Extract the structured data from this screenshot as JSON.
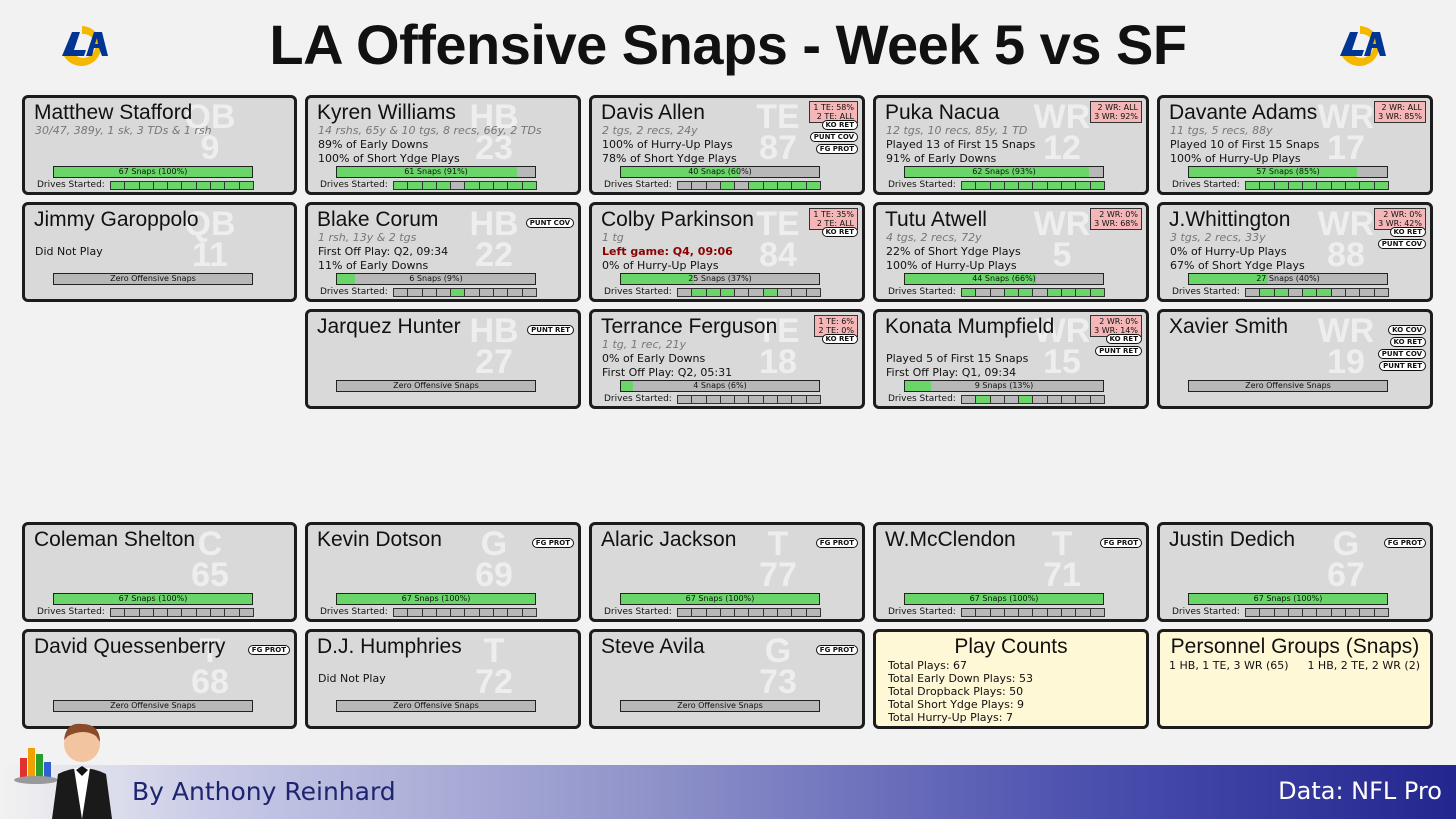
{
  "title": "LA Offensive Snaps - Week 5 vs SF",
  "footer": {
    "byline": "By Anthony Reinhard",
    "source": "Data: NFL Pro"
  },
  "icons": {
    "logo": "rams-logo-icon",
    "author": "waiter-icon"
  },
  "colors": {
    "snap_fill": "#6ad66a",
    "card_bg": "#d9d9d9",
    "pct_box": "#f4b6b6",
    "summary_bg": "#fff8d6",
    "left_game": "#8b0000"
  },
  "players": [
    {
      "name": "Matthew Stafford",
      "pos": "QB",
      "num": "9",
      "line1": "30/47, 389y, 1 sk, 3 TDs & 1 rsh",
      "notes": [],
      "snaps": "67 Snaps (100%)",
      "snap_pct": 100,
      "drives": [
        1,
        1,
        1,
        1,
        1,
        1,
        1,
        1,
        1,
        1
      ],
      "pct_lines": [],
      "tags": []
    },
    {
      "name": "Kyren Williams",
      "pos": "HB",
      "num": "23",
      "line1": "14 rshs, 65y & 10 tgs, 8 recs, 66y, 2 TDs",
      "notes": [
        "89% of Early Downs",
        "100% of Short Ydge Plays"
      ],
      "snaps": "61 Snaps (91%)",
      "snap_pct": 91,
      "drives": [
        1,
        1,
        1,
        1,
        0,
        1,
        1,
        1,
        1,
        1
      ],
      "pct_lines": [],
      "tags": []
    },
    {
      "name": "Davis Allen",
      "pos": "TE",
      "num": "87",
      "line1": "2 tgs, 2 recs, 24y",
      "notes": [
        "100% of Hurry-Up Plays",
        "78% of Short Ydge Plays"
      ],
      "snaps": "40 Snaps (60%)",
      "snap_pct": 60,
      "drives": [
        0,
        0,
        0,
        1,
        0,
        1,
        1,
        1,
        1,
        1
      ],
      "pct_lines": [
        "1 TE: 58%",
        "2 TE: ALL"
      ],
      "tags": [
        "KO RET",
        "PUNT COV",
        "FG PROT"
      ]
    },
    {
      "name": "Puka Nacua",
      "pos": "WR",
      "num": "12",
      "line1": "12 tgs, 10 recs, 85y, 1 TD",
      "notes": [
        "Played 13 of First 15 Snaps",
        "91% of Early Downs"
      ],
      "snaps": "62 Snaps (93%)",
      "snap_pct": 93,
      "drives": [
        1,
        1,
        1,
        1,
        1,
        1,
        1,
        1,
        1,
        1
      ],
      "pct_lines": [
        "2 WR: ALL",
        "3 WR: 92%"
      ],
      "tags": []
    },
    {
      "name": "Davante Adams",
      "pos": "WR",
      "num": "17",
      "line1": "11 tgs, 5 recs, 88y",
      "notes": [
        "Played 10 of First 15 Snaps",
        "100% of Hurry-Up Plays"
      ],
      "snaps": "57 Snaps (85%)",
      "snap_pct": 85,
      "drives": [
        1,
        1,
        1,
        1,
        1,
        1,
        1,
        1,
        1,
        1
      ],
      "pct_lines": [
        "2 WR: ALL",
        "3 WR: 85%"
      ],
      "tags": []
    },
    {
      "name": "Jimmy Garoppolo",
      "pos": "QB",
      "num": "11",
      "line1": "",
      "notes": [
        "Did Not Play"
      ],
      "snaps": "Zero Offensive Snaps",
      "snap_pct": 0,
      "drives": null,
      "pct_lines": [],
      "tags": []
    },
    {
      "name": "Blake Corum",
      "pos": "HB",
      "num": "22",
      "line1": "1 rsh, 13y & 2 tgs",
      "notes": [
        "First Off Play: Q2, 09:34",
        "11% of Early Downs"
      ],
      "snaps": "6 Snaps (9%)",
      "snap_pct": 9,
      "drives": [
        0,
        0,
        0,
        0,
        1,
        0,
        0,
        0,
        0,
        0
      ],
      "pct_lines": [],
      "tags": [
        "PUNT COV"
      ]
    },
    {
      "name": "Colby Parkinson",
      "pos": "TE",
      "num": "84",
      "line1": "1 tg",
      "left_game": "Left game: Q4, 09:06",
      "notes": [
        "0% of Hurry-Up Plays"
      ],
      "snaps": "25 Snaps (37%)",
      "snap_pct": 37,
      "drives": [
        0,
        1,
        1,
        1,
        0,
        0,
        1,
        0,
        0,
        0
      ],
      "pct_lines": [
        "1 TE: 35%",
        "2 TE: ALL"
      ],
      "tags": [
        "KO RET"
      ]
    },
    {
      "name": "Tutu Atwell",
      "pos": "WR",
      "num": "5",
      "line1": "4 tgs, 2 recs, 72y",
      "notes": [
        "22% of Short Ydge Plays",
        "100% of Hurry-Up Plays"
      ],
      "snaps": "44 Snaps (66%)",
      "snap_pct": 66,
      "drives": [
        1,
        0,
        0,
        1,
        1,
        0,
        1,
        1,
        1,
        1
      ],
      "pct_lines": [
        "2 WR: 0%",
        "3 WR: 68%"
      ],
      "tags": []
    },
    {
      "name": "J.Whittington",
      "pos": "WR",
      "num": "88",
      "line1": "3 tgs, 2 recs, 33y",
      "notes": [
        "0% of Hurry-Up Plays",
        "67% of Short Ydge Plays"
      ],
      "snaps": "27 Snaps (40%)",
      "snap_pct": 40,
      "drives": [
        0,
        1,
        1,
        0,
        1,
        1,
        0,
        0,
        0,
        0
      ],
      "pct_lines": [
        "2 WR: 0%",
        "3 WR: 42%"
      ],
      "tags": [
        "KO RET",
        "PUNT COV"
      ]
    },
    {
      "name": "Jarquez Hunter",
      "pos": "HB",
      "num": "27",
      "line1": "",
      "notes": [],
      "snaps": "Zero Offensive Snaps",
      "snap_pct": 0,
      "drives": null,
      "pct_lines": [],
      "tags": [
        "PUNT RET"
      ]
    },
    {
      "name": "Terrance Ferguson",
      "pos": "TE",
      "num": "18",
      "line1": "1 tg, 1 rec, 21y",
      "notes": [
        "0% of Early Downs",
        "First Off Play: Q2, 05:31"
      ],
      "snaps": "4 Snaps (6%)",
      "snap_pct": 6,
      "drives": [
        0,
        0,
        0,
        0,
        0,
        0,
        0,
        0,
        0,
        0
      ],
      "pct_lines": [
        "1 TE: 6%",
        "2 TE: 0%"
      ],
      "tags": [
        "KO RET"
      ]
    },
    {
      "name": "Konata Mumpfield",
      "pos": "WR",
      "num": "15",
      "line1": "",
      "notes": [
        "Played 5 of First 15 Snaps",
        "First Off Play: Q1, 09:34"
      ],
      "snaps": "9 Snaps (13%)",
      "snap_pct": 13,
      "drives": [
        0,
        1,
        0,
        0,
        1,
        0,
        0,
        0,
        0,
        0
      ],
      "pct_lines": [
        "2 WR: 0%",
        "3 WR: 14%"
      ],
      "tags": [
        "KO RET",
        "PUNT RET"
      ]
    },
    {
      "name": "Xavier Smith",
      "pos": "WR",
      "num": "19",
      "line1": "",
      "notes": [],
      "snaps": "Zero Offensive Snaps",
      "snap_pct": 0,
      "drives": null,
      "pct_lines": [],
      "tags": [
        "KO COV",
        "KO RET",
        "PUNT COV",
        "PUNT RET"
      ]
    },
    {
      "name": "Coleman Shelton",
      "pos": "C",
      "num": "65",
      "line1": "",
      "notes": [],
      "snaps": "67 Snaps (100%)",
      "snap_pct": 100,
      "drives": [
        0,
        0,
        0,
        0,
        0,
        0,
        0,
        0,
        0,
        0
      ],
      "pct_lines": [],
      "tags": []
    },
    {
      "name": "Kevin Dotson",
      "pos": "G",
      "num": "69",
      "line1": "",
      "notes": [],
      "snaps": "67 Snaps (100%)",
      "snap_pct": 100,
      "drives": [
        0,
        0,
        0,
        0,
        0,
        0,
        0,
        0,
        0,
        0
      ],
      "pct_lines": [],
      "tags": [
        "FG PROT"
      ]
    },
    {
      "name": "Alaric Jackson",
      "pos": "T",
      "num": "77",
      "line1": "",
      "notes": [],
      "snaps": "67 Snaps (100%)",
      "snap_pct": 100,
      "drives": [
        0,
        0,
        0,
        0,
        0,
        0,
        0,
        0,
        0,
        0
      ],
      "pct_lines": [],
      "tags": [
        "FG PROT"
      ]
    },
    {
      "name": "W.McClendon",
      "pos": "T",
      "num": "71",
      "line1": "",
      "notes": [],
      "snaps": "67 Snaps (100%)",
      "snap_pct": 100,
      "drives": [
        0,
        0,
        0,
        0,
        0,
        0,
        0,
        0,
        0,
        0
      ],
      "pct_lines": [],
      "tags": [
        "FG PROT"
      ]
    },
    {
      "name": "Justin Dedich",
      "pos": "G",
      "num": "67",
      "line1": "",
      "notes": [],
      "snaps": "67 Snaps (100%)",
      "snap_pct": 100,
      "drives": [
        0,
        0,
        0,
        0,
        0,
        0,
        0,
        0,
        0,
        0
      ],
      "pct_lines": [],
      "tags": [
        "FG PROT"
      ]
    },
    {
      "name": "David Quessenberry",
      "pos": "T",
      "num": "68",
      "line1": "",
      "notes": [],
      "snaps": "Zero Offensive Snaps",
      "snap_pct": 0,
      "drives": null,
      "pct_lines": [],
      "tags": [
        "FG PROT"
      ]
    },
    {
      "name": "D.J. Humphries",
      "pos": "T",
      "num": "72",
      "line1": "",
      "notes": [
        "Did Not Play"
      ],
      "snaps": "Zero Offensive Snaps",
      "snap_pct": 0,
      "drives": null,
      "pct_lines": [],
      "tags": []
    },
    {
      "name": "Steve Avila",
      "pos": "G",
      "num": "73",
      "line1": "",
      "notes": [],
      "snaps": "Zero Offensive Snaps",
      "snap_pct": 0,
      "drives": null,
      "pct_lines": [],
      "tags": [
        "FG PROT"
      ]
    }
  ],
  "drives_label": "Drives Started:",
  "play_counts": {
    "title": "Play Counts",
    "lines": [
      "Total Plays: 67",
      "Total Early Down Plays: 53",
      "Total Dropback Plays: 50",
      "Total Short Ydge Plays: 9",
      "Total Hurry-Up Plays: 7"
    ]
  },
  "personnel": {
    "title": "Personnel Groups (Snaps)",
    "groups": [
      "1 HB, 1 TE, 3 WR (65)",
      "1 HB, 2 TE, 2 WR (2)"
    ]
  }
}
